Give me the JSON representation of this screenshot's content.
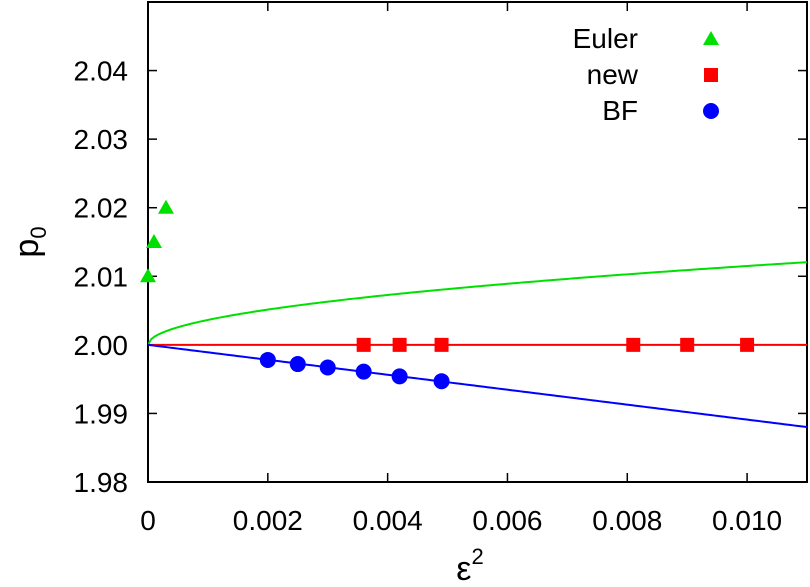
{
  "chart_data": {
    "type": "scatter",
    "xlabel": {
      "base": "ε",
      "sup": "2"
    },
    "ylabel": {
      "base": "p",
      "sub": "0"
    },
    "xlim": [
      0,
      0.011
    ],
    "ylim": [
      1.98,
      2.05
    ],
    "xticks": [
      {
        "value": 0,
        "label": "0"
      },
      {
        "value": 0.002,
        "label": "0.002"
      },
      {
        "value": 0.004,
        "label": "0.004"
      },
      {
        "value": 0.006,
        "label": "0.006"
      },
      {
        "value": 0.008,
        "label": "0.008"
      },
      {
        "value": 0.01,
        "label": "0.010"
      }
    ],
    "yticks": [
      {
        "value": 1.98,
        "label": "1.98"
      },
      {
        "value": 1.99,
        "label": "1.99"
      },
      {
        "value": 2.0,
        "label": "2.00"
      },
      {
        "value": 2.01,
        "label": "2.01"
      },
      {
        "value": 2.02,
        "label": "2.02"
      },
      {
        "value": 2.03,
        "label": "2.03"
      },
      {
        "value": 2.04,
        "label": "2.04"
      }
    ],
    "grid": false,
    "legend_position": "top-right",
    "series": [
      {
        "name": "Euler",
        "marker": "triangle",
        "color": "#00e000",
        "x": [
          0.0,
          0.0001,
          0.0003
        ],
        "y": [
          2.01,
          2.015,
          2.02
        ],
        "fit": {
          "kind": "sqrt",
          "y0": 2.0,
          "coef": 1.15
        }
      },
      {
        "name": "new",
        "marker": "square",
        "color": "#ff0000",
        "x": [
          0.0036,
          0.0042,
          0.0049,
          0.0081,
          0.009,
          0.01
        ],
        "y": [
          2.0,
          2.0,
          2.0,
          2.0,
          2.0,
          2.0
        ],
        "fit": {
          "kind": "linear",
          "y0": 2.0,
          "slope": 0
        }
      },
      {
        "name": "BF",
        "marker": "circle",
        "color": "#0000ff",
        "x": [
          0.002,
          0.0025,
          0.003,
          0.0036,
          0.0042,
          0.0049
        ],
        "y": [
          1.9978,
          1.9972,
          1.9967,
          1.9961,
          1.9954,
          1.9947
        ],
        "fit": {
          "kind": "linear",
          "y0": 2.0,
          "slope": -1.09
        }
      }
    ]
  }
}
